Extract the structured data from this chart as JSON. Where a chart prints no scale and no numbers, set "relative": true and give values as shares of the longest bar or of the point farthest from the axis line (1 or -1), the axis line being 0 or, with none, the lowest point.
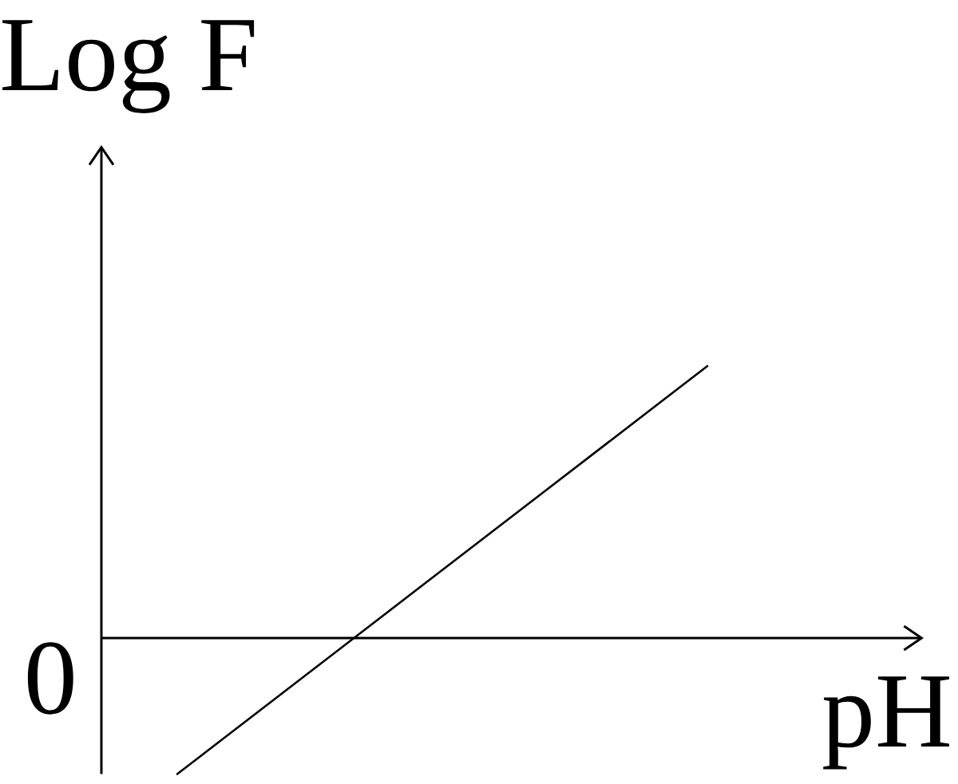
{
  "chart_data": {
    "type": "line",
    "relative": true,
    "categories": [
      null,
      null,
      null,
      null
    ],
    "values": [
      -0.5,
      0,
      0.5,
      1
    ],
    "color": "#000000",
    "xlabel": "pH",
    "ylabel": "Log F",
    "annotations": [
      "0"
    ],
    "marker": "none",
    "line_style": "solid"
  }
}
